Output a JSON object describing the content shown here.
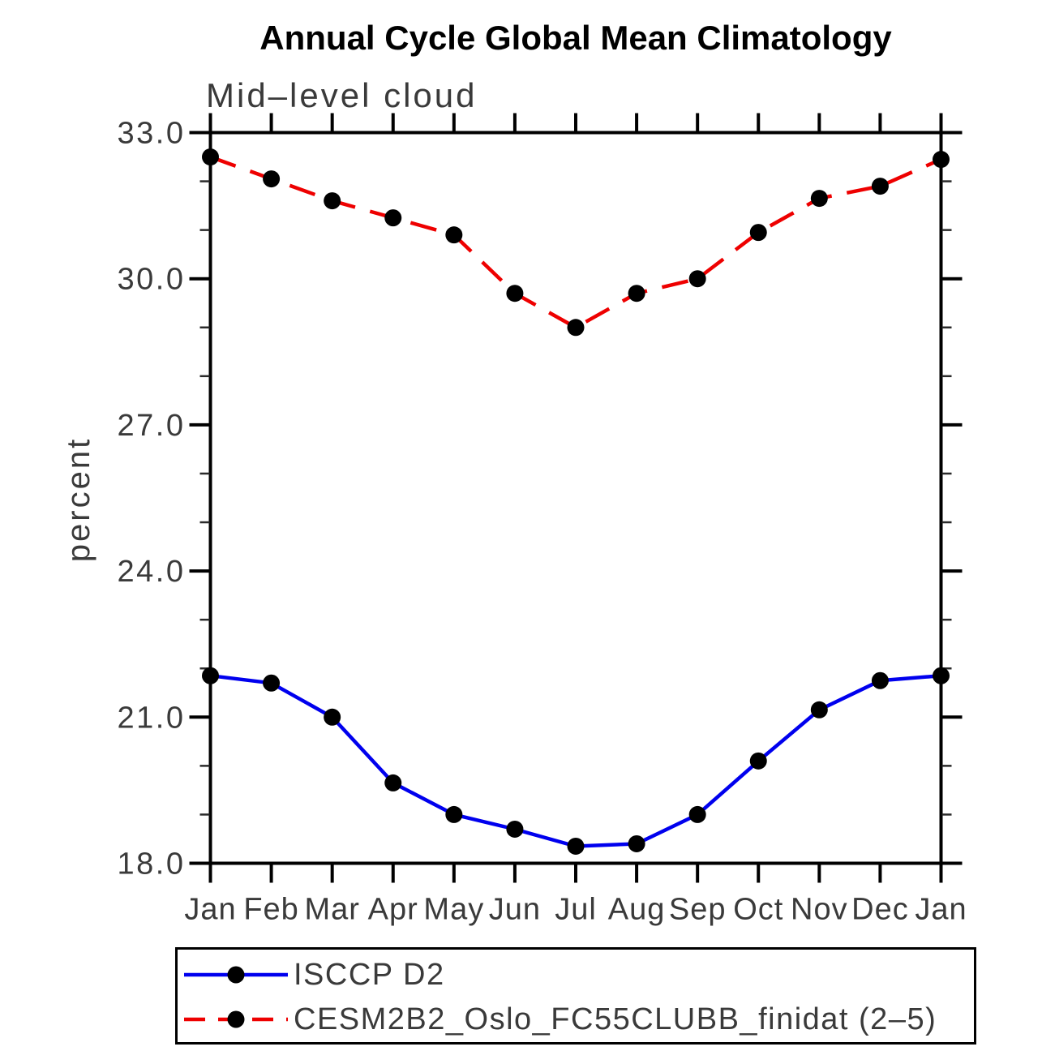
{
  "page": {
    "background": "#ffffff"
  },
  "chart_data": {
    "type": "line",
    "title": "Annual Cycle Global Mean Climatology",
    "subtitle": "Mid–level cloud",
    "ylabel": "percent",
    "xlabel": "",
    "x_categories": [
      "Jan",
      "Feb",
      "Mar",
      "Apr",
      "May",
      "Jun",
      "Jul",
      "Aug",
      "Sep",
      "Oct",
      "Nov",
      "Dec",
      "Jan"
    ],
    "ylim": [
      18.0,
      33.0
    ],
    "ytick_major": [
      18.0,
      21.0,
      24.0,
      27.0,
      30.0,
      33.0
    ],
    "ytick_minor_interval": 1.0,
    "grid": false,
    "legend_position": "framed box below plot, bottom-left",
    "marker": "filled-circle",
    "marker_color": "#000000",
    "axis_color": "#000000",
    "series": [
      {
        "name": "ISCCP D2",
        "color": "#0000ee",
        "line_style": "solid",
        "values": [
          21.85,
          21.7,
          21.0,
          19.65,
          19.0,
          18.7,
          18.35,
          18.4,
          19.0,
          20.1,
          21.15,
          21.75,
          21.85
        ]
      },
      {
        "name": "CESM2B2_Oslo_FC55CLUBB_finidat (2–5)",
        "color": "#ee0000",
        "line_style": "dashed",
        "values": [
          32.5,
          32.05,
          31.6,
          31.25,
          30.9,
          29.7,
          29.0,
          29.7,
          30.0,
          30.95,
          31.65,
          31.9,
          32.45
        ]
      }
    ]
  }
}
